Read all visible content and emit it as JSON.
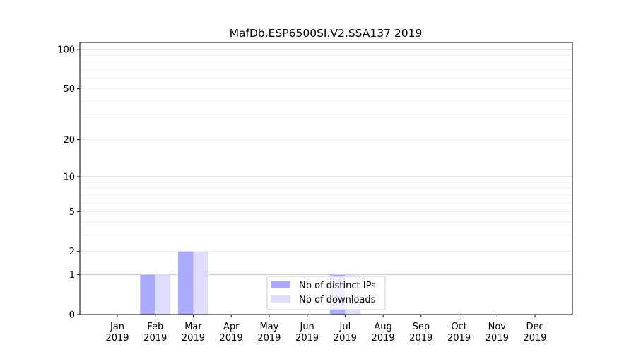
{
  "chart_data": {
    "type": "bar",
    "title": "MafDb.ESP6500SI.V2.SSA137 2019",
    "categories": [
      "Jan\n2019",
      "Feb\n2019",
      "Mar\n2019",
      "Apr\n2019",
      "May\n2019",
      "Jun\n2019",
      "Jul\n2019",
      "Aug\n2019",
      "Sep\n2019",
      "Oct\n2019",
      "Nov\n2019",
      "Dec\n2019"
    ],
    "series": [
      {
        "name": "Nb of distinct IPs",
        "values": [
          0,
          1,
          2,
          0,
          0,
          0,
          1,
          0,
          0,
          0,
          0,
          0
        ],
        "color": "#aaaaff"
      },
      {
        "name": "Nb of downloads",
        "values": [
          0,
          1,
          2,
          0,
          0,
          0,
          1,
          0,
          0,
          0,
          0,
          0
        ],
        "color": "#ddddff"
      }
    ],
    "yscale": "log(1+y)",
    "yticks": [
      0,
      1,
      2,
      5,
      10,
      20,
      50,
      100
    ],
    "ylim": [
      0,
      113
    ],
    "grid": true,
    "legend": "lower-center"
  }
}
